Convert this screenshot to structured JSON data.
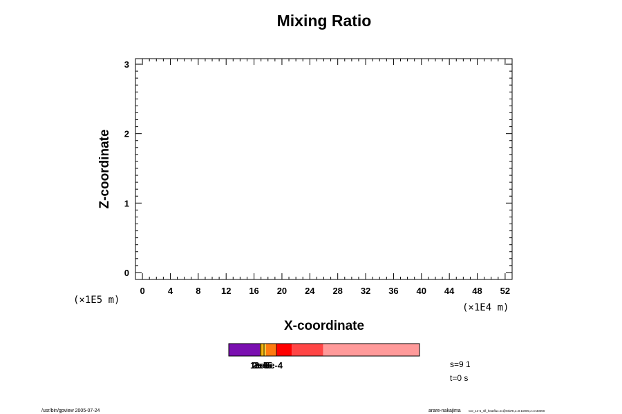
{
  "chart_data": {
    "type": "heatmap",
    "title": "Mixing Ratio",
    "xlabel": "X-coordinate",
    "ylabel": "Z-coordinate",
    "x_scale_label": "(×1E4 m)",
    "y_scale_label": "(×1E5 m)",
    "xlim": [
      -1,
      53
    ],
    "ylim": [
      -0.1,
      3.08
    ],
    "x_ticks": [
      0,
      4,
      8,
      12,
      16,
      20,
      24,
      28,
      32,
      36,
      40,
      44,
      48,
      52
    ],
    "y_ticks": [
      0,
      1,
      2,
      3
    ],
    "x_minor_step": 1,
    "y_minor_step": 0.1,
    "grid": false,
    "colorbar": {
      "segments": [
        {
          "from": 0.0,
          "to": 0.165,
          "color": "#7a0fb0"
        },
        {
          "from": 0.165,
          "to": 0.175,
          "color": "#e0a000"
        },
        {
          "from": 0.175,
          "to": 0.185,
          "color": "#f0b000"
        },
        {
          "from": 0.185,
          "to": 0.195,
          "color": "#ffd030"
        },
        {
          "from": 0.195,
          "to": 0.25,
          "color": "#ff7a10"
        },
        {
          "from": 0.25,
          "to": 0.33,
          "color": "#ff0000"
        },
        {
          "from": 0.33,
          "to": 0.495,
          "color": "#ff4545"
        },
        {
          "from": 0.495,
          "to": 1.0,
          "color": "#ff9a9a"
        }
      ],
      "tick_positions": [
        0.165,
        0.185,
        0.25
      ],
      "overlapping_labels": [
        "1e-5",
        "2e-5",
        "3e-5",
        "5e-4"
      ]
    }
  },
  "info": {
    "slice": "s=9 1",
    "time": "t=0 s"
  },
  "footer": {
    "left": "/usr/bin/gpview 2005-07-24",
    "right_main": "arare-nakajima",
    "right_small": "CO_1e-5_sfl_heatflux.nc@MixRt,x=0:10000,z=0:30000"
  }
}
